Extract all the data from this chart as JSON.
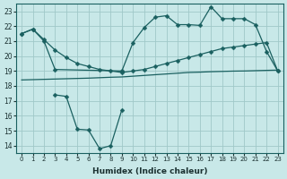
{
  "bg_color": "#c8e8e8",
  "grid_color": "#a0c8c8",
  "line_color": "#1a6060",
  "xlabel": "Humidex (Indice chaleur)",
  "ylim": [
    13.5,
    23.5
  ],
  "xlim": [
    -0.5,
    23.5
  ],
  "yticks": [
    14,
    15,
    16,
    17,
    18,
    19,
    20,
    21,
    22,
    23
  ],
  "xticks": [
    0,
    1,
    2,
    3,
    4,
    5,
    6,
    7,
    8,
    9,
    10,
    11,
    12,
    13,
    14,
    15,
    16,
    17,
    18,
    19,
    20,
    21,
    22,
    23
  ],
  "lineA_x": [
    0,
    1,
    2,
    3,
    4,
    5,
    6,
    7,
    8,
    9,
    10,
    11,
    12,
    13,
    14,
    15,
    16,
    17,
    18,
    19,
    20,
    21,
    22,
    23
  ],
  "lineA_y": [
    21.5,
    21.8,
    21.1,
    20.4,
    19.9,
    19.5,
    19.3,
    19.1,
    19.0,
    18.9,
    19.0,
    19.1,
    19.3,
    19.5,
    19.7,
    19.9,
    20.1,
    20.3,
    20.5,
    20.6,
    20.7,
    20.8,
    20.9,
    19.0
  ],
  "lineB_x": [
    0,
    1,
    2,
    3,
    9,
    10,
    11,
    12,
    13,
    14,
    15,
    16,
    17,
    18,
    19,
    20,
    21,
    22,
    23
  ],
  "lineB_y": [
    21.5,
    21.8,
    21.0,
    19.1,
    19.0,
    20.9,
    21.9,
    22.6,
    22.7,
    22.1,
    22.1,
    22.05,
    23.3,
    22.5,
    22.5,
    22.5,
    22.1,
    20.3,
    19.0
  ],
  "lineC_x": [
    3,
    4,
    5,
    6,
    7,
    8,
    9
  ],
  "lineC_y": [
    17.4,
    17.3,
    15.1,
    15.05,
    13.8,
    14.0,
    16.4
  ],
  "lineD_x": [
    0,
    1,
    2,
    3,
    4,
    5,
    6,
    7,
    8,
    9,
    10,
    11,
    12,
    13,
    14,
    15,
    16,
    17,
    18,
    19,
    20,
    21,
    22,
    23
  ],
  "lineD_y": [
    18.4,
    18.42,
    18.44,
    18.46,
    18.48,
    18.5,
    18.52,
    18.55,
    18.58,
    18.6,
    18.65,
    18.7,
    18.75,
    18.8,
    18.85,
    18.9,
    18.92,
    18.95,
    18.97,
    18.99,
    19.0,
    19.02,
    19.04,
    19.06
  ]
}
